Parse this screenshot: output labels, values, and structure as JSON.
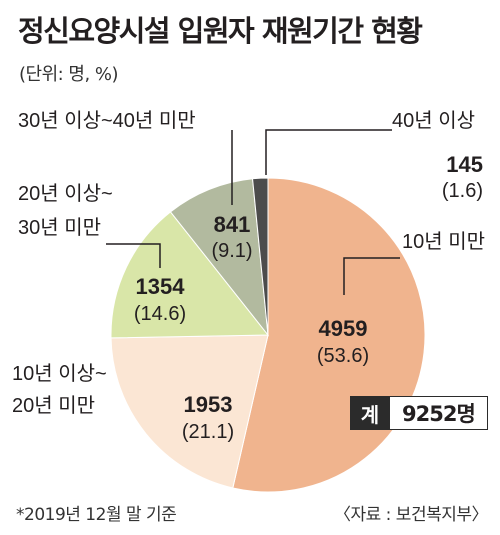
{
  "header": {
    "title": "정신요양시설 입원자 재원기간 현황",
    "unit": "(단위: 명, %)"
  },
  "chart_data": {
    "type": "pie",
    "title": "정신요양시설 입원자 재원기간 현황",
    "slices": [
      {
        "label": "10년 미만",
        "value": 4959,
        "percent_label": "(53.6)",
        "percent": 53.6,
        "color": "#f0b48e"
      },
      {
        "label": "10년 이상~ 20년 미만",
        "value": 1953,
        "percent_label": "(21.1)",
        "percent": 21.1,
        "color": "#fbe6d4"
      },
      {
        "label": "20년 이상~ 30년 미만",
        "value": 1354,
        "percent_label": "(14.6)",
        "percent": 14.6,
        "color": "#d9e6a8"
      },
      {
        "label": "30년 이상~40년 미만",
        "value": 841,
        "percent_label": "(9.1)",
        "percent": 9.1,
        "color": "#b2ba9f"
      },
      {
        "label": "40년 이상",
        "value": 145,
        "percent_label": "(1.6)",
        "percent": 1.6,
        "color": "#4c4c4c"
      }
    ],
    "total_label": "계",
    "total_value": "9252명"
  },
  "footer": {
    "note": "*2019년 12월 말 기준",
    "source": "〈자료 : 보건복지부〉"
  }
}
